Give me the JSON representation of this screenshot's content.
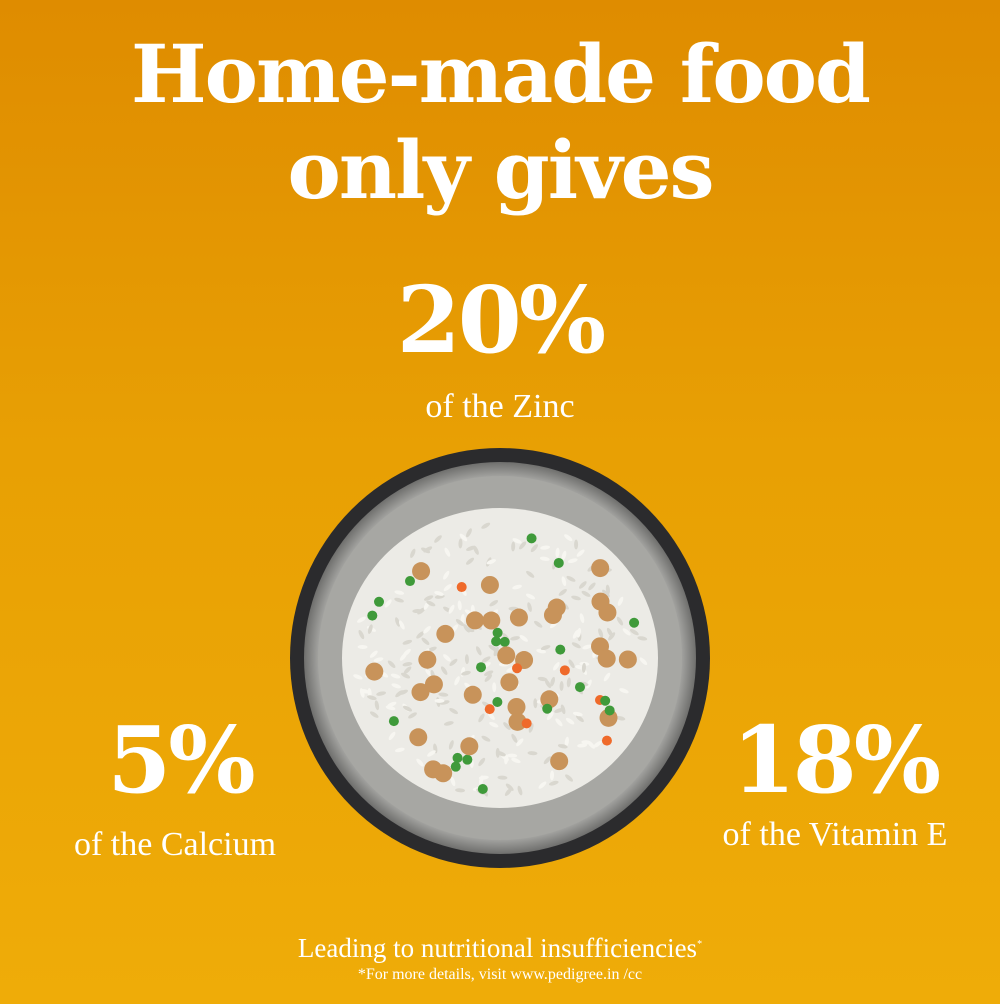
{
  "headline": {
    "line1": "Home-made food",
    "line2": "only gives"
  },
  "stats": [
    {
      "value": "20%",
      "label": "of the Zinc"
    },
    {
      "value": "5%",
      "label": "of the Calcium"
    },
    {
      "value": "18%",
      "label": "of the Vitamin E"
    }
  ],
  "footer": {
    "tagline": "Leading to nutritional insufficiencies",
    "asterisk": "*",
    "note": "*For more details, visit www.pedigree.in /cc"
  },
  "colors": {
    "background_top": "#df8c00",
    "background_bottom": "#efac08",
    "text": "#ffffff"
  }
}
